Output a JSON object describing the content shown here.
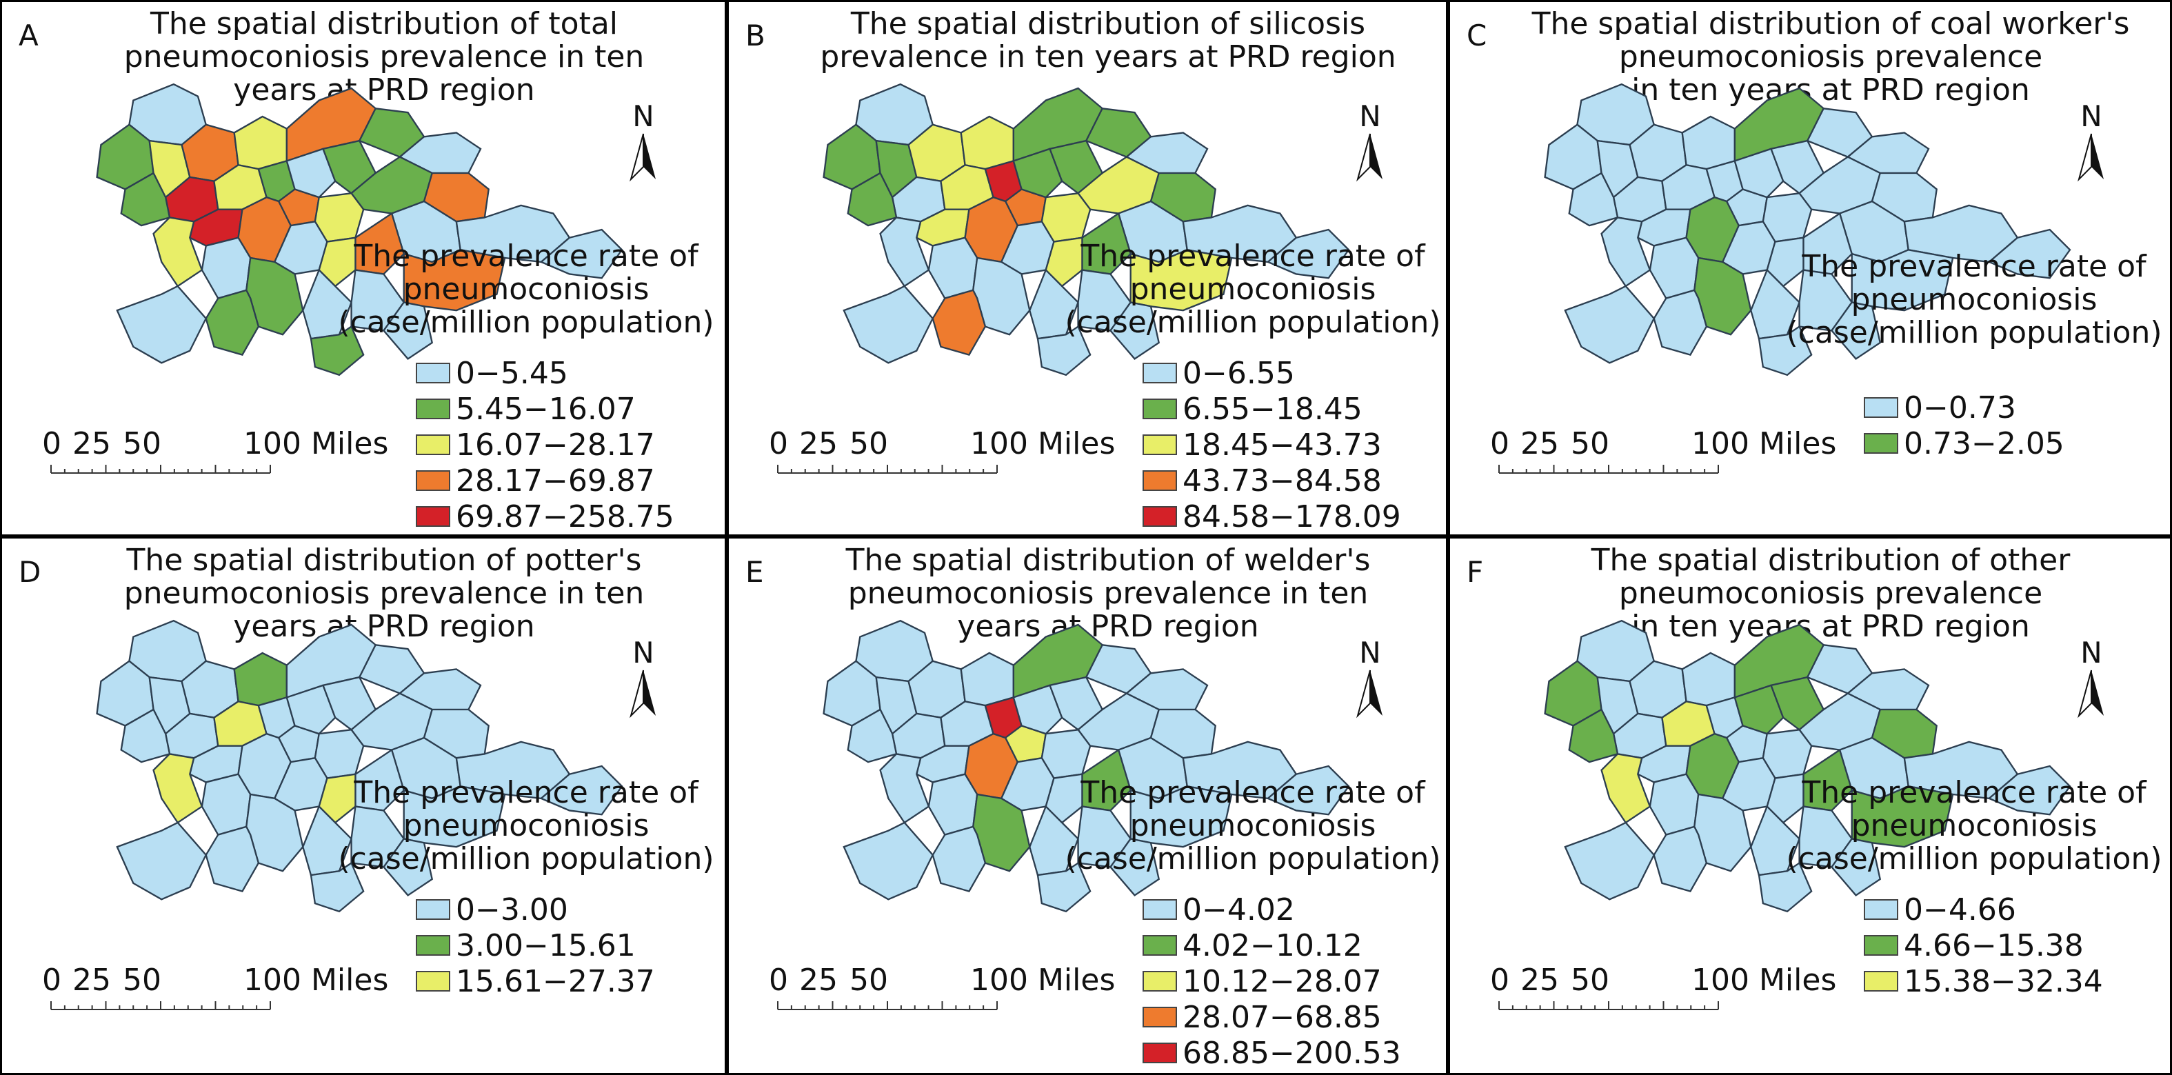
{
  "figure": {
    "panels": [
      {
        "letter": "A",
        "title": "The spatial distribution of total\npneumoconiosis prevalence in ten\nyears at PRD region",
        "legend_title": "The prevalence rate of\npneumoconiosis\n(case/million population)",
        "legend": [
          {
            "label": "0−5.45",
            "color": "#b8dff3"
          },
          {
            "label": "5.45−16.07",
            "color": "#6ab04c"
          },
          {
            "label": "16.07−28.17",
            "color": "#e8ee68"
          },
          {
            "label": "28.17−69.87",
            "color": "#ee7b2e"
          },
          {
            "label": "69.87−258.75",
            "color": "#d42128"
          }
        ],
        "scale_labels": [
          "0",
          "25",
          "50",
          "100 Miles"
        ],
        "north_label": "N",
        "region_classes": [
          0,
          1,
          2,
          3,
          4,
          1,
          2,
          3,
          1,
          0,
          2,
          1,
          3,
          0,
          4,
          2,
          1,
          3,
          0,
          1,
          2,
          3,
          0,
          1,
          0,
          3,
          2,
          0,
          1,
          0,
          0,
          3,
          0,
          1,
          0,
          0
        ]
      },
      {
        "letter": "B",
        "title": "The spatial distribution of silicosis\nprevalence in ten years at PRD region",
        "legend_title": "The prevalence rate of\npneumoconiosis\n(case/million population)",
        "legend": [
          {
            "label": "0−6.55",
            "color": "#b8dff3"
          },
          {
            "label": "6.55−18.45",
            "color": "#6ab04c"
          },
          {
            "label": "18.45−43.73",
            "color": "#e8ee68"
          },
          {
            "label": "43.73−84.58",
            "color": "#ee7b2e"
          },
          {
            "label": "84.58−178.09",
            "color": "#d42128"
          }
        ],
        "scale_labels": [
          "0",
          "25",
          "50",
          "100 Miles"
        ],
        "north_label": "N",
        "region_classes": [
          0,
          1,
          1,
          2,
          0,
          1,
          2,
          1,
          1,
          0,
          2,
          4,
          3,
          1,
          2,
          0,
          1,
          3,
          0,
          2,
          2,
          1,
          0,
          0,
          0,
          1,
          2,
          0,
          3,
          0,
          0,
          2,
          0,
          0,
          0,
          0
        ]
      },
      {
        "letter": "C",
        "title": "The spatial distribution of coal worker's\npneumoconiosis prevalence\nin ten years at PRD region",
        "legend_title": "The prevalence rate of\npneumoconiosis\n(case/million population)",
        "legend": [
          {
            "label": "0−0.73",
            "color": "#b8dff3"
          },
          {
            "label": "0.73−2.05",
            "color": "#6ab04c"
          }
        ],
        "scale_labels": [
          "0",
          "25",
          "50",
          "100 Miles"
        ],
        "north_label": "N",
        "region_classes": [
          0,
          0,
          0,
          0,
          0,
          0,
          0,
          1,
          0,
          0,
          0,
          0,
          0,
          0,
          0,
          0,
          0,
          1,
          0,
          0,
          0,
          0,
          0,
          1,
          0,
          0,
          0,
          0,
          0,
          0,
          0,
          0,
          0,
          0,
          0,
          0
        ]
      },
      {
        "letter": "D",
        "title": "The spatial distribution of potter's\npneumoconiosis prevalence in ten\nyears at PRD region",
        "legend_title": "The prevalence rate of\npneumoconiosis\n(case/million population)",
        "legend": [
          {
            "label": "0−3.00",
            "color": "#b8dff3"
          },
          {
            "label": "3.00−15.61",
            "color": "#6ab04c"
          },
          {
            "label": "15.61−27.37",
            "color": "#e8ee68"
          }
        ],
        "scale_labels": [
          "0",
          "25",
          "50",
          "100 Miles"
        ],
        "north_label": "N",
        "region_classes": [
          0,
          0,
          0,
          0,
          0,
          0,
          1,
          0,
          0,
          0,
          2,
          0,
          0,
          0,
          0,
          2,
          0,
          0,
          0,
          0,
          0,
          0,
          0,
          0,
          0,
          0,
          2,
          0,
          0,
          0,
          0,
          0,
          0,
          0,
          0,
          0
        ]
      },
      {
        "letter": "E",
        "title": "The spatial distribution of welder's\npneumoconiosis prevalence in ten\nyears at PRD region",
        "legend_title": "The prevalence rate of\npneumoconiosis\n(case/million population)",
        "legend": [
          {
            "label": "0−4.02",
            "color": "#b8dff3"
          },
          {
            "label": "4.02−10.12",
            "color": "#6ab04c"
          },
          {
            "label": "10.12−28.07",
            "color": "#e8ee68"
          },
          {
            "label": "28.07−68.85",
            "color": "#ee7b2e"
          },
          {
            "label": "68.85−200.53",
            "color": "#d42128"
          }
        ],
        "scale_labels": [
          "0",
          "25",
          "50",
          "100 Miles"
        ],
        "north_label": "N",
        "region_classes": [
          0,
          0,
          0,
          0,
          0,
          0,
          0,
          1,
          0,
          0,
          0,
          4,
          2,
          0,
          0,
          0,
          0,
          3,
          0,
          0,
          0,
          0,
          0,
          1,
          0,
          1,
          0,
          0,
          0,
          0,
          0,
          0,
          0,
          0,
          0,
          0
        ]
      },
      {
        "letter": "F",
        "title": "The spatial distribution of other\npneumoconiosis prevalence\nin ten years at PRD region",
        "legend_title": "The prevalence rate of\npneumoconiosis\n(case/million population)",
        "legend": [
          {
            "label": "0−4.66",
            "color": "#b8dff3"
          },
          {
            "label": "4.66−15.38",
            "color": "#6ab04c"
          },
          {
            "label": "15.38−32.34",
            "color": "#e8ee68"
          }
        ],
        "scale_labels": [
          "0",
          "25",
          "50",
          "100 Miles"
        ],
        "north_label": "N",
        "region_classes": [
          0,
          1,
          0,
          0,
          0,
          1,
          0,
          1,
          0,
          0,
          2,
          0,
          0,
          1,
          0,
          2,
          1,
          1,
          0,
          0,
          0,
          1,
          0,
          0,
          0,
          1,
          0,
          0,
          0,
          0,
          0,
          1,
          0,
          0,
          0,
          0
        ]
      }
    ]
  }
}
